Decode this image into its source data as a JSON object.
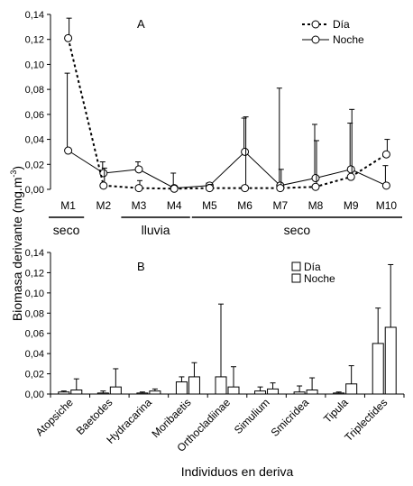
{
  "ylabel_main": "Biomasa derivante (mg.m",
  "ylabel_sup": "-3",
  "ylabel_close": ")",
  "xlabel_b": "Individuos en deriva",
  "chart_data": [
    {
      "type": "line",
      "panel_label": "A",
      "categories": [
        "M1",
        "M2",
        "M3",
        "M4",
        "M5",
        "M6",
        "M7",
        "M8",
        "M9",
        "M10"
      ],
      "ylim": [
        0,
        0.14
      ],
      "yticks": [
        "0,00",
        "0,02",
        "0,04",
        "0,06",
        "0,08",
        "0,10",
        "0,12",
        "0,14"
      ],
      "grid": false,
      "legend_position": "top-right",
      "periods": [
        {
          "label": "seco",
          "from": "M1",
          "to": "M1"
        },
        {
          "label": "lluvia",
          "from": "M3",
          "to": "M4"
        },
        {
          "label": "seco",
          "from": "M5",
          "to": "M10"
        }
      ],
      "series": [
        {
          "name": "Día",
          "style": "dashed",
          "values": [
            0.121,
            0.003,
            0.001,
            0.0005,
            0.001,
            0.001,
            0.001,
            0.002,
            0.01,
            0.028
          ],
          "error_upper": [
            0.137,
            0.017,
            0.007,
            0.002,
            0.004,
            0.058,
            0.016,
            0.039,
            0.064,
            0.04
          ]
        },
        {
          "name": "Noche",
          "style": "solid",
          "values": [
            0.031,
            0.013,
            0.016,
            0.001,
            0.003,
            0.03,
            0.003,
            0.009,
            0.016,
            0.003
          ],
          "error_upper": [
            0.093,
            0.022,
            0.022,
            0.013,
            0.005,
            0.057,
            0.081,
            0.052,
            0.053,
            0.019
          ]
        }
      ]
    },
    {
      "type": "bar",
      "panel_label": "B",
      "categories": [
        "Atopsiche",
        "Baetodes",
        "Hydracarina",
        "Moribaetis",
        "Orthocladiinae",
        "Simulium",
        "Smicridea",
        "Tipula",
        "Triplectides"
      ],
      "ylim": [
        0,
        0.14
      ],
      "yticks": [
        "0,00",
        "0,02",
        "0,04",
        "0,06",
        "0,08",
        "0,10",
        "0,12",
        "0,14"
      ],
      "grid": false,
      "legend_position": "top-right",
      "series": [
        {
          "name": "Día",
          "values": [
            0.002,
            0.001,
            0.001,
            0.012,
            0.017,
            0.003,
            0.002,
            0.001,
            0.05
          ],
          "error_upper": [
            0.003,
            0.003,
            0.002,
            0.017,
            0.089,
            0.007,
            0.008,
            0.002,
            0.085
          ]
        },
        {
          "name": "Noche",
          "values": [
            0.004,
            0.007,
            0.003,
            0.017,
            0.007,
            0.005,
            0.004,
            0.01,
            0.066
          ],
          "error_upper": [
            0.015,
            0.025,
            0.005,
            0.031,
            0.027,
            0.011,
            0.016,
            0.028,
            0.128
          ]
        }
      ]
    }
  ]
}
